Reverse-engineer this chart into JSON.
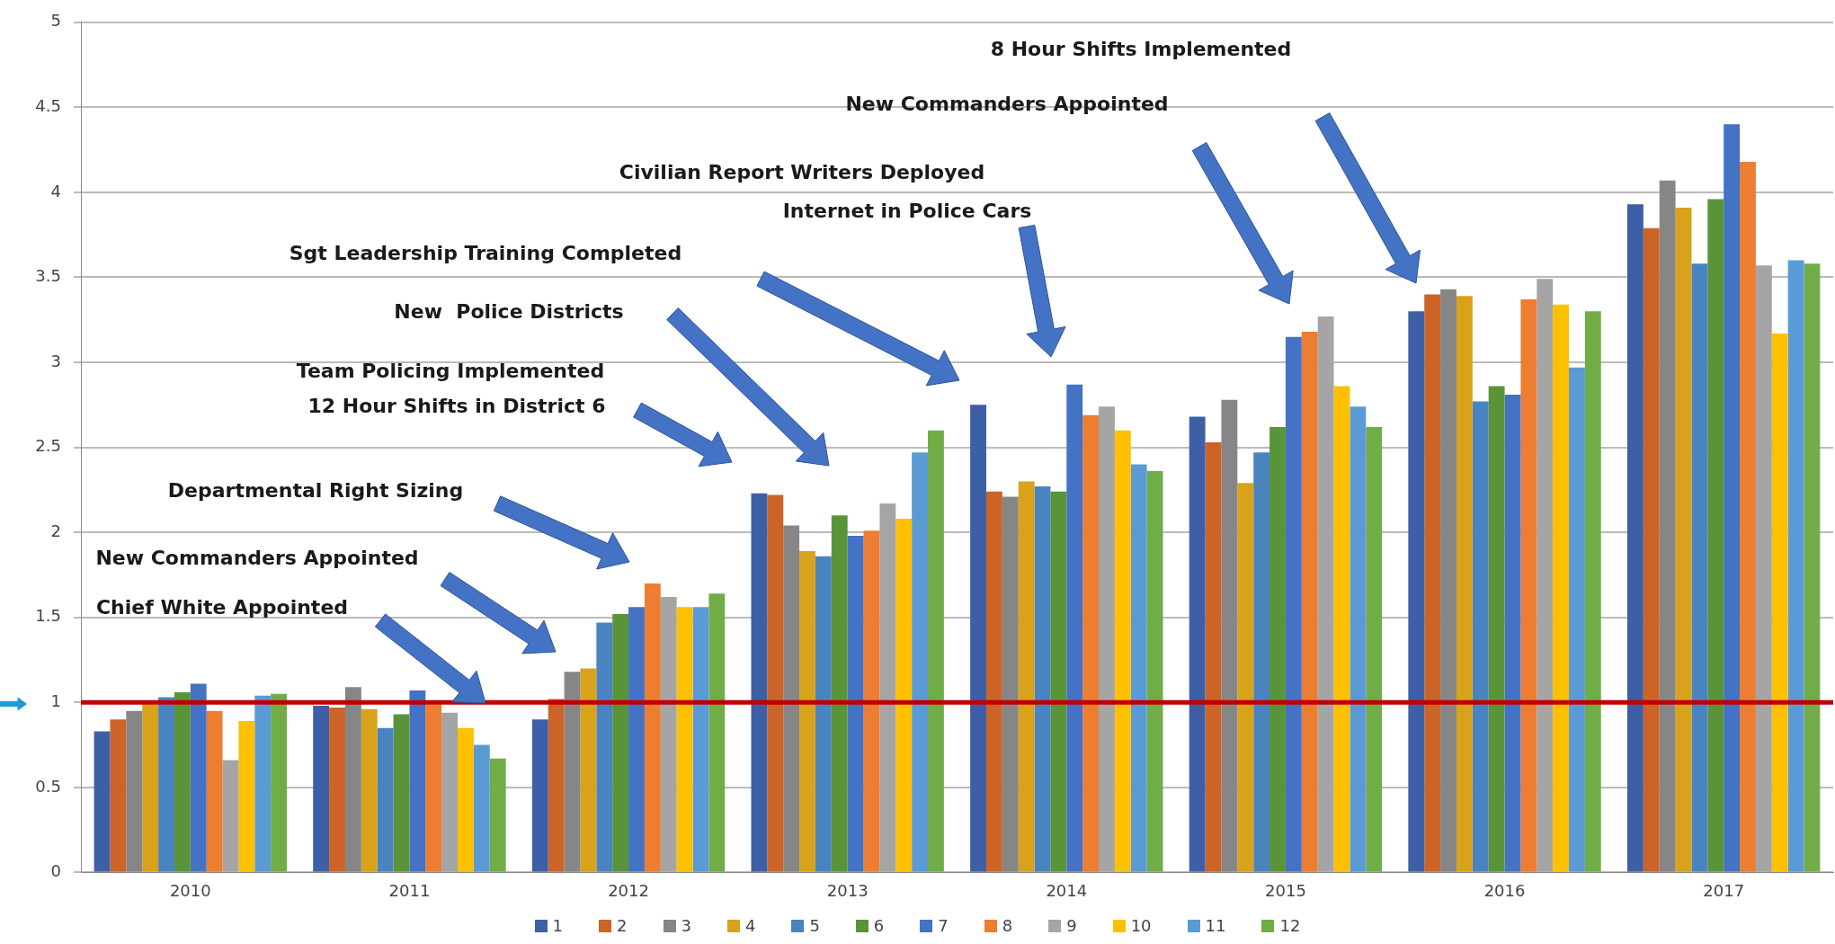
{
  "chart_data": {
    "type": "bar",
    "categories": [
      "2010",
      "2011",
      "2012",
      "2013",
      "2014",
      "2015",
      "2016",
      "2017"
    ],
    "series": [
      {
        "name": "1",
        "color": "#3d5fa6",
        "values": [
          0.83,
          0.98,
          0.9,
          2.23,
          2.75,
          2.68,
          3.3,
          3.93
        ]
      },
      {
        "name": "2",
        "color": "#cc6428",
        "values": [
          0.9,
          0.97,
          1.02,
          2.22,
          2.24,
          2.53,
          3.4,
          3.79
        ]
      },
      {
        "name": "3",
        "color": "#868686",
        "values": [
          0.95,
          1.09,
          1.18,
          2.04,
          2.21,
          2.78,
          3.43,
          4.07
        ]
      },
      {
        "name": "4",
        "color": "#d9a21b",
        "values": [
          0.99,
          0.96,
          1.2,
          1.89,
          2.3,
          2.29,
          3.39,
          3.91
        ]
      },
      {
        "name": "5",
        "color": "#4a84c0",
        "values": [
          1.03,
          0.85,
          1.47,
          1.86,
          2.27,
          2.47,
          2.77,
          3.58
        ]
      },
      {
        "name": "6",
        "color": "#5a9438",
        "values": [
          1.06,
          0.93,
          1.52,
          2.1,
          2.24,
          2.62,
          2.86,
          3.96
        ]
      },
      {
        "name": "7",
        "color": "#4472c4",
        "values": [
          1.11,
          1.07,
          1.56,
          1.98,
          2.87,
          3.15,
          2.81,
          4.4
        ]
      },
      {
        "name": "8",
        "color": "#ed7d31",
        "values": [
          0.95,
          0.99,
          1.7,
          2.01,
          2.69,
          3.18,
          3.37,
          4.18
        ]
      },
      {
        "name": "9",
        "color": "#a5a5a5",
        "values": [
          0.66,
          0.94,
          1.62,
          2.17,
          2.74,
          3.27,
          3.49,
          3.57
        ]
      },
      {
        "name": "10",
        "color": "#ffc000",
        "values": [
          0.89,
          0.85,
          1.56,
          2.08,
          2.6,
          2.86,
          3.34,
          3.17
        ]
      },
      {
        "name": "11",
        "color": "#5b9bd5",
        "values": [
          1.04,
          0.75,
          1.56,
          2.47,
          2.4,
          2.74,
          2.97,
          3.6
        ]
      },
      {
        "name": "12",
        "color": "#70ad47",
        "values": [
          1.05,
          0.67,
          1.64,
          2.6,
          2.36,
          2.62,
          3.3,
          3.58
        ]
      }
    ],
    "ylim": [
      0,
      5
    ],
    "yticks": [
      0,
      0.5,
      1,
      1.5,
      2,
      2.5,
      3,
      3.5,
      4,
      4.5,
      5
    ],
    "grid": "y",
    "legend": "bottom",
    "ref_lines": [
      {
        "axis": "y",
        "value": 1,
        "color": "#c00000"
      }
    ],
    "annotations": [
      "Chief White Appointed",
      "New Commanders Appointed",
      "Departmental Right Sizing",
      "12 Hour Shifts in District 6",
      "Team Policing Implemented",
      "New  Police Districts",
      "Sgt Leadership Training Completed",
      "Internet in Police Cars",
      "Civilian Report Writers Deployed",
      "New Commanders Appointed",
      "8 Hour Shifts Implemented"
    ]
  }
}
